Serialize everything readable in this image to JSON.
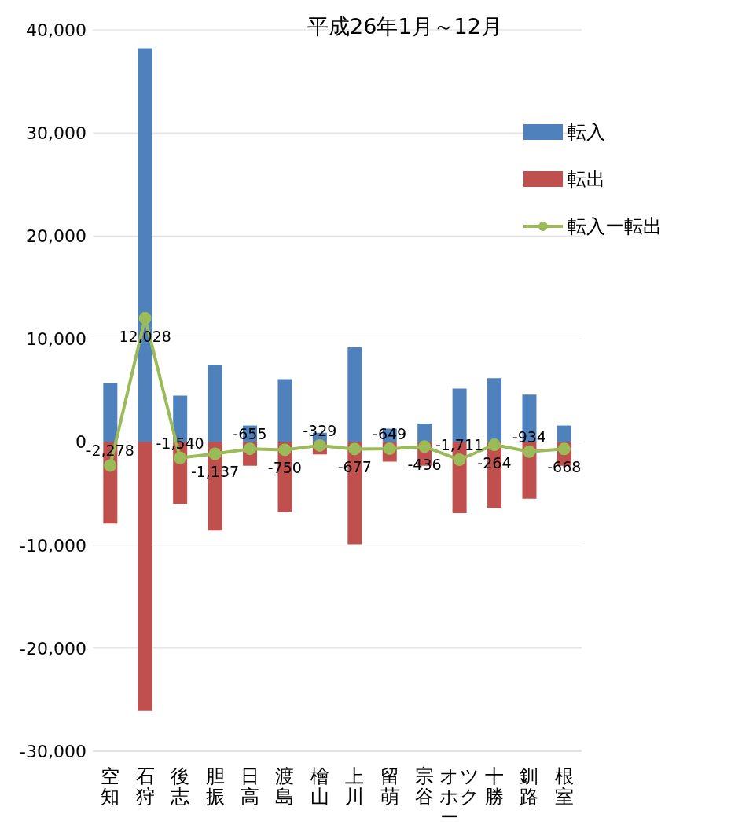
{
  "chart_data": {
    "type": "bar",
    "title": "平成26年1月～12月",
    "stacked": true,
    "grid": "y",
    "legend": "top right",
    "marker": "circle",
    "categories": [
      "空知",
      "石狩",
      "後志",
      "胆振",
      "日高",
      "渡島",
      "檜山",
      "上川",
      "留萌",
      "宗谷",
      "オホーツク",
      "十勝",
      "釧路",
      "根室"
    ],
    "ylim": [
      -30000,
      40000
    ],
    "yticks": [
      {
        "value": -30000,
        "label": "-30,000"
      },
      {
        "value": -20000,
        "label": "-20,000"
      },
      {
        "value": -10000,
        "label": "-10,000"
      },
      0,
      {
        "value": 10000,
        "label": "10,000"
      },
      {
        "value": 20000,
        "label": "20,000"
      },
      {
        "value": 30000,
        "label": "30,000"
      },
      {
        "value": 40000,
        "label": "40,000"
      }
    ],
    "series": [
      {
        "name": "転入",
        "color": "#4f81bd",
        "values": [
          5700,
          38200,
          4500,
          7500,
          1600,
          6100,
          900,
          9200,
          1300,
          1800,
          5200,
          6200,
          4600,
          1600
        ]
      },
      {
        "name": "転出",
        "color": "#c0504d",
        "values": [
          -7900,
          -26100,
          -6000,
          -8600,
          -2300,
          -6800,
          -1200,
          -9900,
          -1900,
          -2300,
          -6900,
          -6400,
          -5500,
          -2300
        ]
      },
      {
        "name": "転入ー転出",
        "type": "line",
        "color": "#9bbb59",
        "values": [
          -2278,
          12028,
          -1540,
          -1137,
          -655,
          -750,
          -329,
          -677,
          -649,
          -436,
          -1711,
          -264,
          -934,
          -668
        ],
        "value_labels": [
          "-2,278",
          "12,028",
          "-1,540",
          "-1,137",
          "-655",
          "-750",
          "-329",
          "-677",
          "-649",
          "-436",
          "-1,711",
          "-264",
          "-934",
          "-668"
        ]
      }
    ]
  }
}
